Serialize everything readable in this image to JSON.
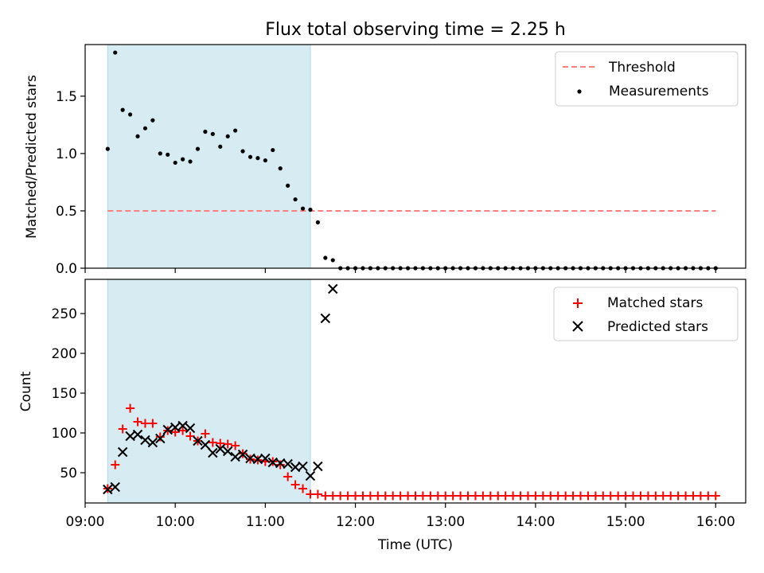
{
  "title": "Flux total observing time = 2.25 h",
  "chart_data": [
    {
      "type": "scatter",
      "panel": "top",
      "title": "Flux total observing time = 2.25 h",
      "ylabel": "Matched/Predicted stars",
      "xlabel": "",
      "ylim": [
        0,
        1.95
      ],
      "yticks": [
        0.0,
        0.5,
        1.0,
        1.5
      ],
      "ytick_labels": [
        "0.0",
        "0.5",
        "1.0",
        "1.5"
      ],
      "highlight_span": [
        "09:15",
        "11:30"
      ],
      "threshold": {
        "name": "Threshold",
        "y": 0.5,
        "x": [
          "09:15",
          "16:00"
        ],
        "color": "#ff7f7f",
        "style": "dashed"
      },
      "legend": {
        "position": "top-right",
        "entries": [
          "Threshold",
          "Measurements"
        ]
      },
      "series": [
        {
          "name": "Measurements",
          "marker": "dot",
          "color": "#000000",
          "x": [
            "09:15",
            "09:20",
            "09:25",
            "09:30",
            "09:35",
            "09:40",
            "09:45",
            "09:50",
            "09:55",
            "10:00",
            "10:05",
            "10:10",
            "10:15",
            "10:20",
            "10:25",
            "10:30",
            "10:35",
            "10:40",
            "10:45",
            "10:50",
            "10:55",
            "11:00",
            "11:05",
            "11:10",
            "11:15",
            "11:20",
            "11:25",
            "11:30",
            "11:35",
            "11:40",
            "11:45",
            "11:50",
            "11:55",
            "12:00",
            "12:05",
            "12:10",
            "12:15",
            "12:20",
            "12:25",
            "12:30",
            "12:35",
            "12:40",
            "12:45",
            "12:50",
            "12:55",
            "13:00",
            "13:05",
            "13:10",
            "13:15",
            "13:20",
            "13:25",
            "13:30",
            "13:35",
            "13:40",
            "13:45",
            "13:50",
            "13:55",
            "14:00",
            "14:05",
            "14:10",
            "14:15",
            "14:20",
            "14:25",
            "14:30",
            "14:35",
            "14:40",
            "14:45",
            "14:50",
            "14:55",
            "15:00",
            "15:05",
            "15:10",
            "15:15",
            "15:20",
            "15:25",
            "15:30",
            "15:35",
            "15:40",
            "15:45",
            "15:50",
            "15:55",
            "16:00"
          ],
          "values": [
            1.04,
            1.88,
            1.38,
            1.34,
            1.15,
            1.22,
            1.29,
            1.0,
            0.99,
            0.92,
            0.95,
            0.93,
            1.04,
            1.19,
            1.17,
            1.06,
            1.15,
            1.2,
            1.02,
            0.97,
            0.96,
            0.94,
            1.03,
            0.87,
            0.72,
            0.6,
            0.52,
            0.51,
            0.4,
            0.09,
            0.07,
            0.0,
            0,
            0,
            0,
            0,
            0,
            0,
            0,
            0,
            0,
            0,
            0,
            0,
            0,
            0,
            0,
            0,
            0,
            0,
            0,
            0,
            0,
            0,
            0,
            0,
            0,
            0,
            0,
            0,
            0,
            0,
            0,
            0,
            0,
            0,
            0,
            0,
            0,
            0,
            0,
            0,
            0,
            0,
            0,
            0,
            0,
            0,
            0,
            0,
            0,
            0
          ]
        }
      ]
    },
    {
      "type": "scatter",
      "panel": "bottom",
      "xlabel": "Time (UTC)",
      "ylabel": "Count",
      "ylim": [
        12,
        293
      ],
      "yticks": [
        50,
        100,
        150,
        200,
        250
      ],
      "ytick_labels": [
        "50",
        "100",
        "150",
        "200",
        "250"
      ],
      "xlim": [
        "09:00",
        "16:20"
      ],
      "xticks": [
        "09:00",
        "10:00",
        "11:00",
        "12:00",
        "13:00",
        "14:00",
        "15:00",
        "16:00"
      ],
      "xtick_labels": [
        "09:00",
        "10:00",
        "11:00",
        "12:00",
        "13:00",
        "14:00",
        "15:00",
        "16:00"
      ],
      "highlight_span": [
        "09:15",
        "11:30"
      ],
      "legend": {
        "position": "top-right",
        "entries": [
          "Matched stars",
          "Predicted stars"
        ]
      },
      "series": [
        {
          "name": "Matched stars",
          "marker": "plus",
          "color": "#ff0000",
          "x": [
            "09:15",
            "09:20",
            "09:25",
            "09:30",
            "09:35",
            "09:40",
            "09:45",
            "09:50",
            "09:55",
            "10:00",
            "10:05",
            "10:10",
            "10:15",
            "10:20",
            "10:25",
            "10:30",
            "10:35",
            "10:40",
            "10:45",
            "10:50",
            "10:55",
            "11:00",
            "11:05",
            "11:10",
            "11:15",
            "11:20",
            "11:25",
            "11:30",
            "11:35",
            "11:40",
            "11:45",
            "11:50",
            "11:55",
            "12:00",
            "12:05",
            "12:10",
            "12:15",
            "12:20",
            "12:25",
            "12:30",
            "12:35",
            "12:40",
            "12:45",
            "12:50",
            "12:55",
            "13:00",
            "13:05",
            "13:10",
            "13:15",
            "13:20",
            "13:25",
            "13:30",
            "13:35",
            "13:40",
            "13:45",
            "13:50",
            "13:55",
            "14:00",
            "14:05",
            "14:10",
            "14:15",
            "14:20",
            "14:25",
            "14:30",
            "14:35",
            "14:40",
            "14:45",
            "14:50",
            "14:55",
            "15:00",
            "15:05",
            "15:10",
            "15:15",
            "15:20",
            "15:25",
            "15:30",
            "15:35",
            "15:40",
            "15:45",
            "15:50",
            "15:55",
            "16:00"
          ],
          "values": [
            30,
            60,
            105,
            131,
            114,
            112,
            112,
            95,
            103,
            101,
            103,
            96,
            90,
            99,
            88,
            87,
            86,
            84,
            74,
            67,
            66,
            64,
            64,
            60,
            45,
            35,
            30,
            23,
            23,
            21,
            21,
            21,
            21,
            21,
            21,
            21,
            21,
            21,
            21,
            21,
            21,
            21,
            21,
            21,
            21,
            21,
            21,
            21,
            21,
            21,
            21,
            21,
            21,
            21,
            21,
            21,
            21,
            21,
            21,
            21,
            21,
            21,
            21,
            21,
            21,
            21,
            21,
            21,
            21,
            21,
            21,
            21,
            21,
            21,
            21,
            21,
            21,
            21,
            21,
            21,
            21,
            21
          ]
        },
        {
          "name": "Predicted stars",
          "marker": "x",
          "color": "#000000",
          "x": [
            "09:15",
            "09:20",
            "09:25",
            "09:30",
            "09:35",
            "09:40",
            "09:45",
            "09:50",
            "09:55",
            "10:00",
            "10:05",
            "10:10",
            "10:15",
            "10:20",
            "10:25",
            "10:30",
            "10:35",
            "10:40",
            "10:45",
            "10:50",
            "10:55",
            "11:00",
            "11:05",
            "11:10",
            "11:15",
            "11:20",
            "11:25",
            "11:30",
            "11:35",
            "11:40",
            "11:45"
          ],
          "values": [
            29,
            32,
            76,
            96,
            98,
            91,
            88,
            93,
            104,
            107,
            109,
            106,
            90,
            85,
            75,
            80,
            77,
            70,
            73,
            68,
            67,
            68,
            63,
            62,
            61,
            57,
            58,
            46,
            58,
            244,
            281
          ]
        }
      ]
    }
  ]
}
